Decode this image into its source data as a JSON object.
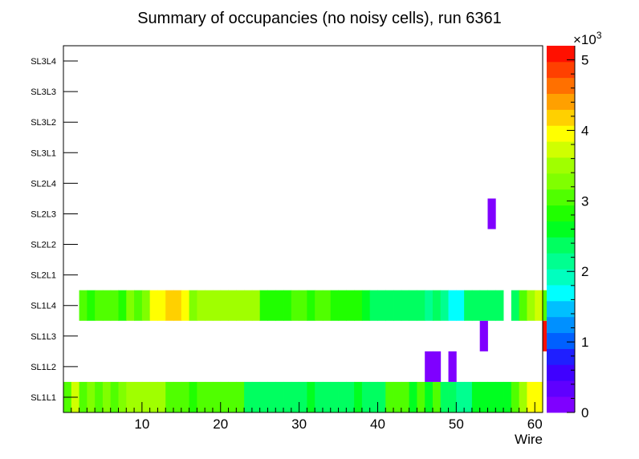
{
  "chart_data": {
    "type": "heatmap",
    "title": "Summary of occupancies (no noisy cells), run 6361",
    "xlabel": "Wire",
    "ylabel": "",
    "x_range": [
      0,
      60
    ],
    "x_ticks": [
      "10",
      "20",
      "30",
      "40",
      "50",
      "60"
    ],
    "y_categories": [
      "SL1L1",
      "SL1L2",
      "SL1L3",
      "SL1L4",
      "SL2L1",
      "SL2L2",
      "SL2L3",
      "SL2L4",
      "SL3L1",
      "SL3L2",
      "SL3L3",
      "SL3L4"
    ],
    "z_range": [
      0,
      5200
    ],
    "z_ticks": [
      "0",
      "1",
      "2",
      "3",
      "4",
      "5"
    ],
    "z_multiplier": "×10",
    "z_multiplier_exp": "3",
    "rows": {
      "SL1L1": [
        3000,
        3800,
        3000,
        3300,
        3100,
        3200,
        3000,
        3200,
        3500,
        3400,
        3400,
        3400,
        3400,
        3000,
        3000,
        3000,
        2900,
        3100,
        3100,
        3100,
        3100,
        3100,
        3100,
        2400,
        2400,
        2400,
        2400,
        2400,
        2400,
        2400,
        2400,
        2700,
        2400,
        2400,
        2400,
        2400,
        2400,
        2700,
        2400,
        2400,
        2400,
        3000,
        3000,
        3000,
        2700,
        3000,
        2700,
        3000,
        2400,
        2400,
        2200,
        2200,
        2700,
        2700,
        2700,
        2700,
        2700,
        3100,
        3400,
        4000,
        4000,
        0
      ],
      "SL1L2": [
        0,
        0,
        0,
        0,
        0,
        0,
        0,
        0,
        0,
        0,
        0,
        0,
        0,
        0,
        0,
        0,
        0,
        0,
        0,
        0,
        0,
        0,
        0,
        0,
        0,
        0,
        0,
        0,
        0,
        0,
        0,
        0,
        0,
        0,
        0,
        0,
        0,
        0,
        0,
        0,
        0,
        0,
        0,
        0,
        0,
        0,
        200,
        200,
        0,
        200,
        0,
        0,
        0,
        0,
        0,
        0,
        0,
        0,
        0,
        0,
        0,
        0
      ],
      "SL1L3": [
        0,
        0,
        0,
        0,
        0,
        0,
        0,
        0,
        0,
        0,
        0,
        0,
        0,
        0,
        0,
        0,
        0,
        0,
        0,
        0,
        0,
        0,
        0,
        0,
        0,
        0,
        0,
        0,
        0,
        0,
        0,
        0,
        0,
        0,
        0,
        0,
        0,
        0,
        0,
        0,
        0,
        0,
        0,
        0,
        0,
        0,
        0,
        0,
        0,
        0,
        0,
        0,
        0,
        200,
        0,
        0,
        0,
        0,
        0,
        0,
        0,
        5000
      ],
      "SL1L4": [
        0,
        0,
        3000,
        2900,
        3000,
        3000,
        3000,
        2900,
        3300,
        3000,
        3300,
        3900,
        3900,
        4100,
        4100,
        3900,
        3300,
        3500,
        3500,
        3500,
        3500,
        3500,
        3500,
        3500,
        3500,
        2900,
        2900,
        2900,
        2900,
        3000,
        3000,
        2900,
        3000,
        3000,
        2900,
        2900,
        2900,
        2900,
        2600,
        2400,
        2400,
        2400,
        2400,
        2400,
        2400,
        2400,
        2100,
        2400,
        2100,
        1800,
        1800,
        2400,
        2400,
        2400,
        2400,
        2400,
        0,
        2400,
        3000,
        3500,
        3800,
        3000
      ],
      "SL2L1": [
        0,
        0,
        0,
        0,
        0,
        0,
        0,
        0,
        0,
        0,
        0,
        0,
        0,
        0,
        0,
        0,
        0,
        0,
        0,
        0,
        0,
        0,
        0,
        0,
        0,
        0,
        0,
        0,
        0,
        0,
        0,
        0,
        0,
        0,
        0,
        0,
        0,
        0,
        0,
        0,
        0,
        0,
        0,
        0,
        0,
        0,
        0,
        0,
        0,
        0,
        0,
        0,
        0,
        0,
        0,
        0,
        0,
        0,
        0,
        0,
        0,
        0
      ],
      "SL2L2": [
        0,
        0,
        0,
        0,
        0,
        0,
        0,
        0,
        0,
        0,
        0,
        0,
        0,
        0,
        0,
        0,
        0,
        0,
        0,
        0,
        0,
        0,
        0,
        0,
        0,
        0,
        0,
        0,
        0,
        0,
        0,
        0,
        0,
        0,
        0,
        0,
        0,
        0,
        0,
        0,
        0,
        0,
        0,
        0,
        0,
        0,
        0,
        0,
        0,
        0,
        0,
        0,
        0,
        0,
        0,
        0,
        0,
        0,
        0,
        0,
        0,
        0
      ],
      "SL2L3": [
        0,
        0,
        0,
        0,
        0,
        0,
        0,
        0,
        0,
        0,
        0,
        0,
        0,
        0,
        0,
        0,
        0,
        0,
        0,
        0,
        0,
        0,
        0,
        0,
        0,
        0,
        0,
        0,
        0,
        0,
        0,
        0,
        0,
        0,
        0,
        0,
        0,
        0,
        0,
        0,
        0,
        0,
        0,
        0,
        0,
        0,
        0,
        0,
        0,
        0,
        0,
        0,
        0,
        0,
        200,
        0,
        0,
        0,
        0,
        0,
        0,
        0
      ],
      "SL2L4": [
        0,
        0,
        0,
        0,
        0,
        0,
        0,
        0,
        0,
        0,
        0,
        0,
        0,
        0,
        0,
        0,
        0,
        0,
        0,
        0,
        0,
        0,
        0,
        0,
        0,
        0,
        0,
        0,
        0,
        0,
        0,
        0,
        0,
        0,
        0,
        0,
        0,
        0,
        0,
        0,
        0,
        0,
        0,
        0,
        0,
        0,
        0,
        0,
        0,
        0,
        0,
        0,
        0,
        0,
        0,
        0,
        0,
        0,
        0,
        0,
        0,
        0
      ],
      "SL3L1": [
        0,
        0,
        0,
        0,
        0,
        0,
        0,
        0,
        0,
        0,
        0,
        0,
        0,
        0,
        0,
        0,
        0,
        0,
        0,
        0,
        0,
        0,
        0,
        0,
        0,
        0,
        0,
        0,
        0,
        0,
        0,
        0,
        0,
        0,
        0,
        0,
        0,
        0,
        0,
        0,
        0,
        0,
        0,
        0,
        0,
        0,
        0,
        0,
        0,
        0,
        0,
        0,
        0,
        0,
        0,
        0,
        0,
        0,
        0,
        0,
        0,
        0
      ],
      "SL3L2": [
        0,
        0,
        0,
        0,
        0,
        0,
        0,
        0,
        0,
        0,
        0,
        0,
        0,
        0,
        0,
        0,
        0,
        0,
        0,
        0,
        0,
        0,
        0,
        0,
        0,
        0,
        0,
        0,
        0,
        0,
        0,
        0,
        0,
        0,
        0,
        0,
        0,
        0,
        0,
        0,
        0,
        0,
        0,
        0,
        0,
        0,
        0,
        0,
        0,
        0,
        0,
        0,
        0,
        0,
        0,
        0,
        0,
        0,
        0,
        0,
        0,
        0
      ],
      "SL3L3": [
        0,
        0,
        0,
        0,
        0,
        0,
        0,
        0,
        0,
        0,
        0,
        0,
        0,
        0,
        0,
        0,
        0,
        0,
        0,
        0,
        0,
        0,
        0,
        0,
        0,
        0,
        0,
        0,
        0,
        0,
        0,
        0,
        0,
        0,
        0,
        0,
        0,
        0,
        0,
        0,
        0,
        0,
        0,
        0,
        0,
        0,
        0,
        0,
        0,
        0,
        0,
        0,
        0,
        0,
        0,
        0,
        0,
        0,
        0,
        0,
        0,
        0
      ],
      "SL3L4": [
        0,
        0,
        0,
        0,
        0,
        0,
        0,
        0,
        0,
        0,
        0,
        0,
        0,
        0,
        0,
        0,
        0,
        0,
        0,
        0,
        0,
        0,
        0,
        0,
        0,
        0,
        0,
        0,
        0,
        0,
        0,
        0,
        0,
        0,
        0,
        0,
        0,
        0,
        0,
        0,
        0,
        0,
        0,
        0,
        0,
        0,
        0,
        0,
        0,
        0,
        0,
        0,
        0,
        0,
        0,
        0,
        0,
        0,
        0,
        0,
        0,
        0
      ]
    },
    "palette": [
      "#7f00ff",
      "#5f00ff",
      "#3f00ff",
      "#1f1fff",
      "#0060ff",
      "#0090ff",
      "#00bfff",
      "#00ffff",
      "#00ffbf",
      "#00ff90",
      "#00ff60",
      "#00ff20",
      "#20ff00",
      "#50ff00",
      "#80ff00",
      "#a0ff00",
      "#d0ff00",
      "#ffff00",
      "#ffd000",
      "#ffa000",
      "#ff7000",
      "#ff4000",
      "#ff1000"
    ]
  }
}
